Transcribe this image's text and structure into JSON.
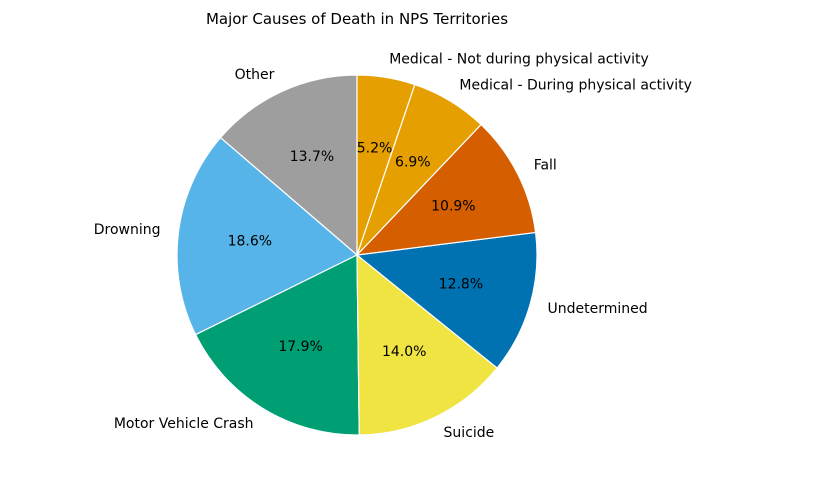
{
  "chart_data": {
    "type": "pie",
    "title": "Major Causes of Death in NPS Territories",
    "start_angle_deg": 90,
    "direction": "counterclockwise",
    "slices": [
      {
        "label": "Other",
        "value": 13.7,
        "pct_label": "13.7%",
        "color": "#9e9e9e"
      },
      {
        "label": "Drowning",
        "value": 18.6,
        "pct_label": "18.6%",
        "color": "#56b4e9"
      },
      {
        "label": "Motor Vehicle Crash",
        "value": 17.9,
        "pct_label": "17.9%",
        "color": "#009e73"
      },
      {
        "label": "Suicide",
        "value": 14.0,
        "pct_label": "14.0%",
        "color": "#f0e442"
      },
      {
        "label": "Undetermined",
        "value": 12.8,
        "pct_label": "12.8%",
        "color": "#0072b2"
      },
      {
        "label": "Fall",
        "value": 10.9,
        "pct_label": "10.9%",
        "color": "#d55e00"
      },
      {
        "label": "Medical - During physical activity",
        "value": 6.9,
        "pct_label": "6.9%",
        "color": "#e69f00"
      },
      {
        "label": "Medical - Not during physical activity",
        "value": 5.2,
        "pct_label": "5.2%",
        "color": "#e69f00"
      }
    ]
  }
}
